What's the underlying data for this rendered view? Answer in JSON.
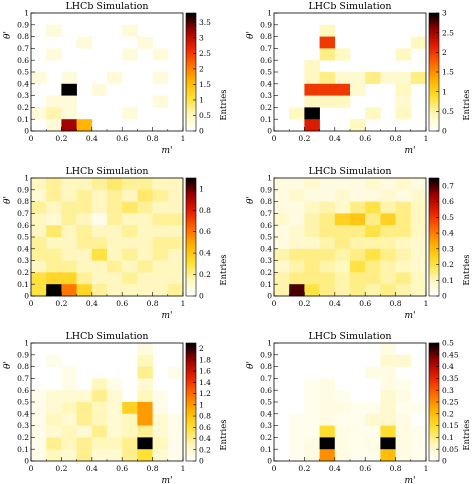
{
  "colors": {
    "colormap": [
      "#ffffff",
      "#fff7bc",
      "#ffe033",
      "#ffb400",
      "#ff6a00",
      "#e62000",
      "#9b0000",
      "#000000"
    ]
  },
  "chart_data": [
    {
      "type": "heatmap",
      "title": "LHCb Simulation",
      "xlabel": "m'",
      "ylabel": "θ'",
      "colorbar_label": "Entries",
      "xlim": [
        0,
        1
      ],
      "ylim": [
        0,
        1
      ],
      "x_ticks": [
        "0",
        "0.2",
        "0.4",
        "0.6",
        "0.8",
        "1"
      ],
      "y_ticks": [
        "0",
        "0.1",
        "0.2",
        "0.3",
        "0.4",
        "0.5",
        "0.6",
        "0.7",
        "0.8",
        "0.9",
        "1"
      ],
      "colorbar_ticks": [
        "0",
        "0.5",
        "1",
        "1.5",
        "2",
        "2.5",
        "3",
        "3.5"
      ],
      "zmax": 3.8,
      "bins": 10,
      "z_rows_top_to_bottom": [
        [
          0,
          0,
          0,
          0,
          0,
          0,
          0,
          0,
          0,
          0
        ],
        [
          0,
          0.3,
          0,
          0,
          0,
          0,
          0.3,
          0,
          0,
          0
        ],
        [
          0,
          0,
          0,
          0.3,
          0,
          0,
          0,
          0.3,
          0,
          0
        ],
        [
          0,
          0.3,
          0,
          0,
          0,
          0,
          0.3,
          0,
          0.3,
          0
        ],
        [
          0,
          0,
          0,
          0,
          0,
          0,
          0,
          0,
          0,
          0
        ],
        [
          0.3,
          0,
          0.3,
          0,
          0,
          0.3,
          0,
          0,
          0.3,
          0
        ],
        [
          0,
          0,
          3.8,
          0,
          0.3,
          0,
          0,
          0,
          0,
          0
        ],
        [
          0,
          0.3,
          0.3,
          0,
          0,
          0,
          0,
          0,
          0.3,
          0
        ],
        [
          0.3,
          0.6,
          0.3,
          0,
          0,
          0,
          0.3,
          0,
          0,
          0
        ],
        [
          0,
          0.3,
          3.2,
          1.6,
          0,
          0,
          0,
          0,
          0,
          0
        ]
      ]
    },
    {
      "type": "heatmap",
      "title": "LHCb Simulation",
      "xlabel": "m'",
      "ylabel": "θ'",
      "colorbar_label": "Entries",
      "xlim": [
        0,
        1
      ],
      "ylim": [
        0,
        1
      ],
      "x_ticks": [
        "0",
        "0.2",
        "0.4",
        "0.6",
        "0.8",
        "1"
      ],
      "y_ticks": [
        "0",
        "0.1",
        "0.2",
        "0.3",
        "0.4",
        "0.5",
        "0.6",
        "0.7",
        "0.8",
        "0.9",
        "1"
      ],
      "colorbar_ticks": [
        "0",
        "0.5",
        "1",
        "1.5",
        "2",
        "2.5",
        "3"
      ],
      "zmax": 3,
      "bins": 10,
      "z_rows_top_to_bottom": [
        [
          0,
          0,
          0,
          0,
          0,
          0,
          0,
          0,
          0,
          0
        ],
        [
          0,
          0,
          0,
          0.4,
          0,
          0,
          0,
          0,
          0,
          0
        ],
        [
          0,
          0,
          0,
          2.0,
          0,
          0,
          0,
          0,
          0,
          0.4
        ],
        [
          0,
          0,
          0,
          0.6,
          0.4,
          0,
          0,
          0,
          0.4,
          0
        ],
        [
          0,
          0,
          0.4,
          0,
          0,
          0,
          0,
          0,
          0,
          0
        ],
        [
          0,
          0,
          0.4,
          0.6,
          0.3,
          0.3,
          0.6,
          0.3,
          0.3,
          0.6
        ],
        [
          0,
          0,
          2.0,
          2.0,
          2.0,
          0.3,
          0,
          0,
          0.4,
          0
        ],
        [
          0,
          0,
          0.4,
          0.4,
          0.4,
          0,
          0,
          0,
          0.3,
          0
        ],
        [
          0,
          0.4,
          3.0,
          0,
          0,
          0,
          0.4,
          0,
          0.4,
          0
        ],
        [
          0,
          0,
          2.2,
          0,
          0,
          0.4,
          0,
          0,
          0,
          0
        ]
      ]
    },
    {
      "type": "heatmap",
      "title": "LHCb Simulation",
      "xlabel": "m'",
      "ylabel": "θ'",
      "colorbar_label": "Entries",
      "xlim": [
        0,
        1
      ],
      "ylim": [
        0,
        1
      ],
      "x_ticks": [
        "0",
        "0.2",
        "0.4",
        "0.6",
        "0.8",
        "1"
      ],
      "y_ticks": [
        "0",
        "0.1",
        "0.2",
        "0.3",
        "0.4",
        "0.5",
        "0.6",
        "0.7",
        "0.8",
        "0.9",
        "1"
      ],
      "colorbar_ticks": [
        "0",
        "0.2",
        "0.4",
        "0.6",
        "0.8",
        "1"
      ],
      "zmax": 1.1,
      "bins": 10,
      "z_rows_top_to_bottom": [
        [
          0.15,
          0.2,
          0.15,
          0.15,
          0.2,
          0.25,
          0.2,
          0.2,
          0.15,
          0.15
        ],
        [
          0.1,
          0.2,
          0.15,
          0.2,
          0.15,
          0.2,
          0.15,
          0.25,
          0.2,
          0.15
        ],
        [
          0.2,
          0.15,
          0.2,
          0.2,
          0.15,
          0.2,
          0.25,
          0.2,
          0.15,
          0.15
        ],
        [
          0.15,
          0.1,
          0.2,
          0.15,
          0.05,
          0.2,
          0.15,
          0.15,
          0.2,
          0.2
        ],
        [
          0.15,
          0.25,
          0.15,
          0.2,
          0.15,
          0.15,
          0.2,
          0.15,
          0.15,
          0.15
        ],
        [
          0.2,
          0.15,
          0.15,
          0.2,
          0.2,
          0.15,
          0.15,
          0.15,
          0.2,
          0.2
        ],
        [
          0.2,
          0.2,
          0.15,
          0.15,
          0.3,
          0.15,
          0.2,
          0.15,
          0.2,
          0.15
        ],
        [
          0.15,
          0.2,
          0.2,
          0.15,
          0.15,
          0.2,
          0.15,
          0.2,
          0.15,
          0.15
        ],
        [
          0.3,
          0.35,
          0.35,
          0.2,
          0.15,
          0.15,
          0.2,
          0.15,
          0.15,
          0.15
        ],
        [
          0.3,
          1.1,
          0.6,
          0.35,
          0.2,
          0.15,
          0.15,
          0.15,
          0.15,
          0.2
        ]
      ]
    },
    {
      "type": "heatmap",
      "title": "LHCb Simulation",
      "xlabel": "m'",
      "ylabel": "θ'",
      "colorbar_label": "Entries",
      "xlim": [
        0,
        1
      ],
      "ylim": [
        0,
        1
      ],
      "x_ticks": [
        "0",
        "0.2",
        "0.4",
        "0.6",
        "0.8",
        "1"
      ],
      "y_ticks": [
        "0",
        "0.1",
        "0.2",
        "0.3",
        "0.4",
        "0.5",
        "0.6",
        "0.7",
        "0.8",
        "0.9",
        "1"
      ],
      "colorbar_ticks": [
        "0",
        "0.1",
        "0.2",
        "0.3",
        "0.4",
        "0.5",
        "0.6",
        "0.7"
      ],
      "zmax": 0.75,
      "bins": 10,
      "z_rows_top_to_bottom": [
        [
          0.05,
          0.05,
          0.08,
          0.05,
          0.05,
          0.05,
          0.08,
          0.05,
          0.08,
          0.05
        ],
        [
          0.05,
          0.08,
          0.05,
          0.05,
          0.08,
          0.05,
          0.05,
          0.08,
          0.05,
          0.08
        ],
        [
          0.05,
          0.05,
          0.1,
          0.12,
          0.08,
          0.15,
          0.2,
          0.12,
          0.15,
          0.1
        ],
        [
          0.08,
          0.05,
          0.12,
          0.15,
          0.25,
          0.28,
          0.15,
          0.25,
          0.15,
          0.1
        ],
        [
          0.05,
          0.08,
          0.12,
          0.15,
          0.15,
          0.15,
          0.2,
          0.15,
          0.15,
          0.1
        ],
        [
          0.05,
          0.08,
          0.08,
          0.12,
          0.15,
          0.12,
          0.12,
          0.12,
          0.1,
          0.08
        ],
        [
          0.12,
          0.15,
          0.15,
          0.15,
          0.12,
          0.15,
          0.2,
          0.15,
          0.12,
          0.08
        ],
        [
          0.08,
          0.12,
          0.15,
          0.12,
          0.1,
          0.2,
          0.15,
          0.12,
          0.1,
          0.08
        ],
        [
          0.12,
          0.15,
          0.15,
          0.15,
          0.12,
          0.15,
          0.15,
          0.12,
          0.15,
          0.1
        ],
        [
          0.12,
          0.7,
          0.2,
          0.15,
          0.12,
          0.15,
          0.12,
          0.15,
          0.12,
          0.1
        ]
      ]
    },
    {
      "type": "heatmap",
      "title": "LHCb Simulation",
      "xlabel": "m'",
      "ylabel": "θ'",
      "colorbar_label": "Entries",
      "xlim": [
        0,
        1
      ],
      "ylim": [
        0,
        1
      ],
      "x_ticks": [
        "0",
        "0.2",
        "0.4",
        "0.6",
        "0.8",
        "1"
      ],
      "y_ticks": [
        "0",
        "0.1",
        "0.2",
        "0.3",
        "0.4",
        "0.5",
        "0.6",
        "0.7",
        "0.8",
        "0.9",
        "1"
      ],
      "colorbar_ticks": [
        "0",
        "0.2",
        "0.4",
        "0.6",
        "0.8",
        "1",
        "1.2",
        "1.4",
        "1.6",
        "1.8",
        "2"
      ],
      "zmax": 2.1,
      "bins": 10,
      "z_rows_top_to_bottom": [
        [
          0,
          0,
          0,
          0,
          0,
          0,
          0,
          0.15,
          0,
          0
        ],
        [
          0,
          0.1,
          0,
          0,
          0,
          0,
          0,
          0.3,
          0,
          0
        ],
        [
          0,
          0,
          0.1,
          0,
          0,
          0,
          0,
          0.4,
          0,
          0.1
        ],
        [
          0,
          0,
          0.1,
          0,
          0.3,
          0.1,
          0,
          0.2,
          0,
          0
        ],
        [
          0.1,
          0.2,
          0.2,
          0.2,
          0.4,
          0.2,
          0,
          0.3,
          0.1,
          0
        ],
        [
          0.1,
          0.2,
          0.3,
          0.4,
          0.3,
          0.2,
          0.7,
          1.0,
          0.1,
          0
        ],
        [
          0.1,
          0.3,
          0.2,
          0.4,
          0.3,
          0.2,
          0.3,
          1.0,
          0.2,
          0.1
        ],
        [
          0.1,
          0.2,
          0.3,
          0.2,
          0.4,
          0.2,
          0.3,
          0.4,
          0.2,
          0.1
        ],
        [
          0.1,
          0.4,
          0.3,
          0.4,
          0.3,
          0.3,
          0.4,
          2.1,
          0.3,
          0.1
        ],
        [
          0.1,
          0.3,
          0.2,
          0.4,
          0.2,
          0.2,
          0.4,
          0.6,
          0.2,
          0.1
        ]
      ]
    },
    {
      "type": "heatmap",
      "title": "LHCb Simulation",
      "xlabel": "m'",
      "ylabel": "θ'",
      "colorbar_label": "Entries",
      "xlim": [
        0,
        1
      ],
      "ylim": [
        0,
        1
      ],
      "x_ticks": [
        "0",
        "0.2",
        "0.4",
        "0.6",
        "0.8",
        "1"
      ],
      "y_ticks": [
        "0",
        "0.1",
        "0.2",
        "0.3",
        "0.4",
        "0.5",
        "0.6",
        "0.7",
        "0.8",
        "0.9",
        "1"
      ],
      "colorbar_ticks": [
        "0",
        "0.05",
        "0.1",
        "0.15",
        "0.2",
        "0.25",
        "0.3",
        "0.35",
        "0.4",
        "0.45",
        "0.5"
      ],
      "zmax": 0.5,
      "bins": 10,
      "z_rows_top_to_bottom": [
        [
          0,
          0,
          0,
          0,
          0,
          0,
          0,
          0.03,
          0,
          0
        ],
        [
          0,
          0,
          0,
          0,
          0,
          0,
          0,
          0.05,
          0.05,
          0
        ],
        [
          0,
          0,
          0,
          0,
          0,
          0,
          0.03,
          0.03,
          0,
          0
        ],
        [
          0,
          0,
          0.02,
          0.03,
          0,
          0,
          0,
          0.03,
          0.02,
          0
        ],
        [
          0,
          0,
          0.02,
          0.03,
          0.02,
          0,
          0,
          0.05,
          0.03,
          0
        ],
        [
          0,
          0,
          0.02,
          0.03,
          0.03,
          0.02,
          0.02,
          0.05,
          0.02,
          0.02
        ],
        [
          0,
          0.02,
          0.02,
          0.03,
          0.02,
          0.02,
          0.05,
          0.05,
          0.03,
          0
        ],
        [
          0,
          0.02,
          0.02,
          0.15,
          0.03,
          0.02,
          0.02,
          0.15,
          0.03,
          0.02
        ],
        [
          0,
          0.02,
          0.03,
          0.5,
          0.03,
          0.02,
          0.03,
          0.5,
          0.03,
          0.02
        ],
        [
          0,
          0.02,
          0.03,
          0.25,
          0.03,
          0.02,
          0.02,
          0.2,
          0.03,
          0.02
        ]
      ]
    }
  ]
}
